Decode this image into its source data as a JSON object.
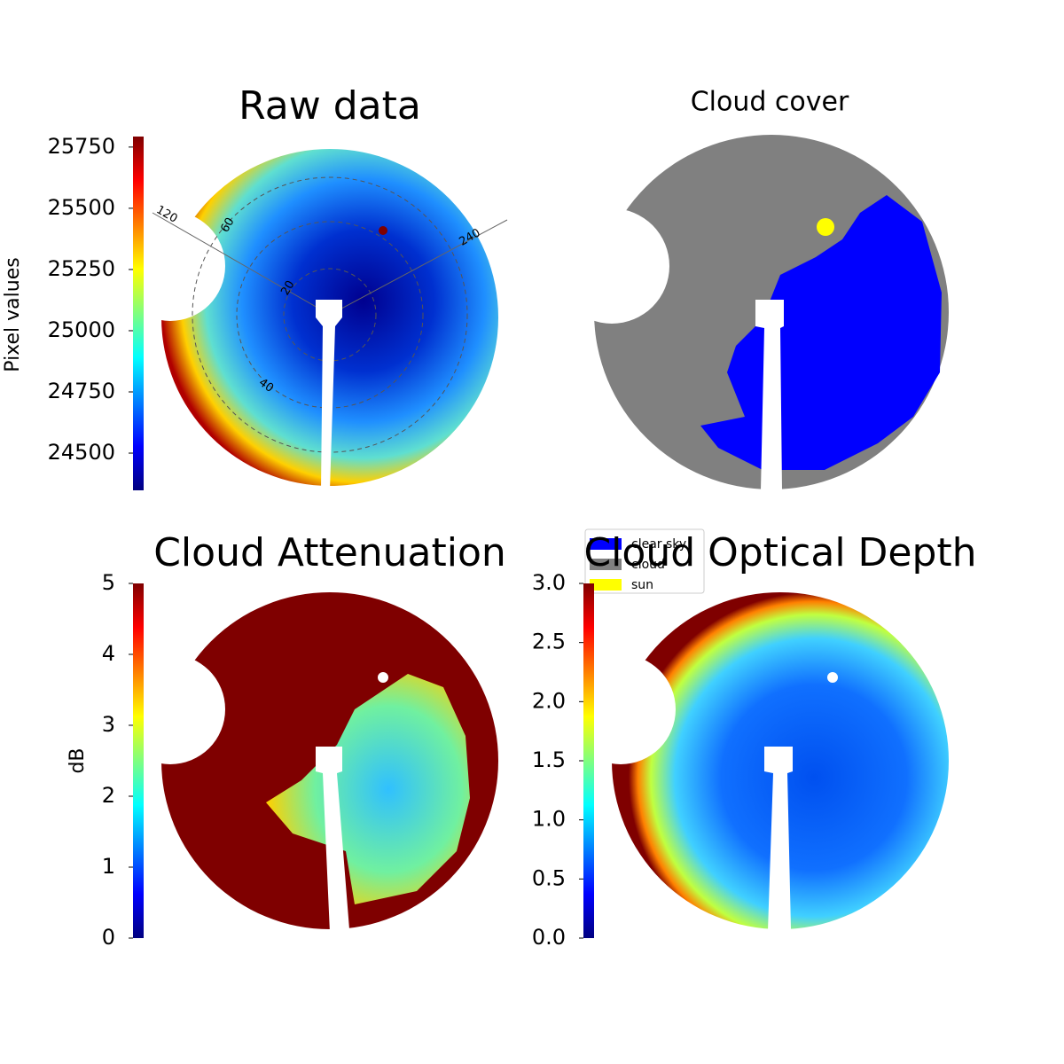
{
  "chart_data": [
    {
      "type": "image",
      "title": "Raw data",
      "ylabel": "Pixel values",
      "ylim": [
        24348,
        25793
      ],
      "yticks": [
        24500,
        24750,
        25000,
        25250,
        25500,
        25750
      ],
      "colormap": [
        "#00007f",
        "#0000ff",
        "#007fff",
        "#00ffff",
        "#7fff7f",
        "#ffff00",
        "#ff7f00",
        "#ff0000",
        "#7f0000"
      ],
      "annotations": [
        "120",
        "60",
        "240",
        "20",
        "40"
      ]
    },
    {
      "type": "image",
      "title": "Cloud cover",
      "series": [
        {
          "name": "clear sky",
          "color": "#0000ff"
        },
        {
          "name": "cloud",
          "color": "#808080"
        },
        {
          "name": "sun",
          "color": "#ffff00"
        }
      ]
    },
    {
      "type": "image",
      "title": "Cloud Attenuation",
      "ylabel": "dB",
      "ylim": [
        0,
        5
      ],
      "yticks": [
        0,
        1,
        2,
        3,
        4,
        5
      ],
      "colormap": [
        "#00007f",
        "#0000ff",
        "#007fff",
        "#00ffff",
        "#7fff7f",
        "#ffff00",
        "#ff7f00",
        "#ff0000",
        "#7f0000"
      ]
    },
    {
      "type": "image",
      "title": "Cloud Optical Depth",
      "ylim": [
        0,
        3
      ],
      "yticks": [
        {
          "value": 0,
          "label": "0.0"
        },
        {
          "value": 0.5,
          "label": "0.5"
        },
        {
          "value": 1,
          "label": "1.0"
        },
        {
          "value": 1.5,
          "label": "1.5"
        },
        {
          "value": 2,
          "label": "2.0"
        },
        {
          "value": 2.5,
          "label": "2.5"
        },
        {
          "value": 3,
          "label": "3.0"
        }
      ],
      "colormap": [
        "#00007f",
        "#0000ff",
        "#007fff",
        "#00ffff",
        "#7fff7f",
        "#ffff00",
        "#ff7f00",
        "#ff0000",
        "#7f0000"
      ]
    }
  ]
}
